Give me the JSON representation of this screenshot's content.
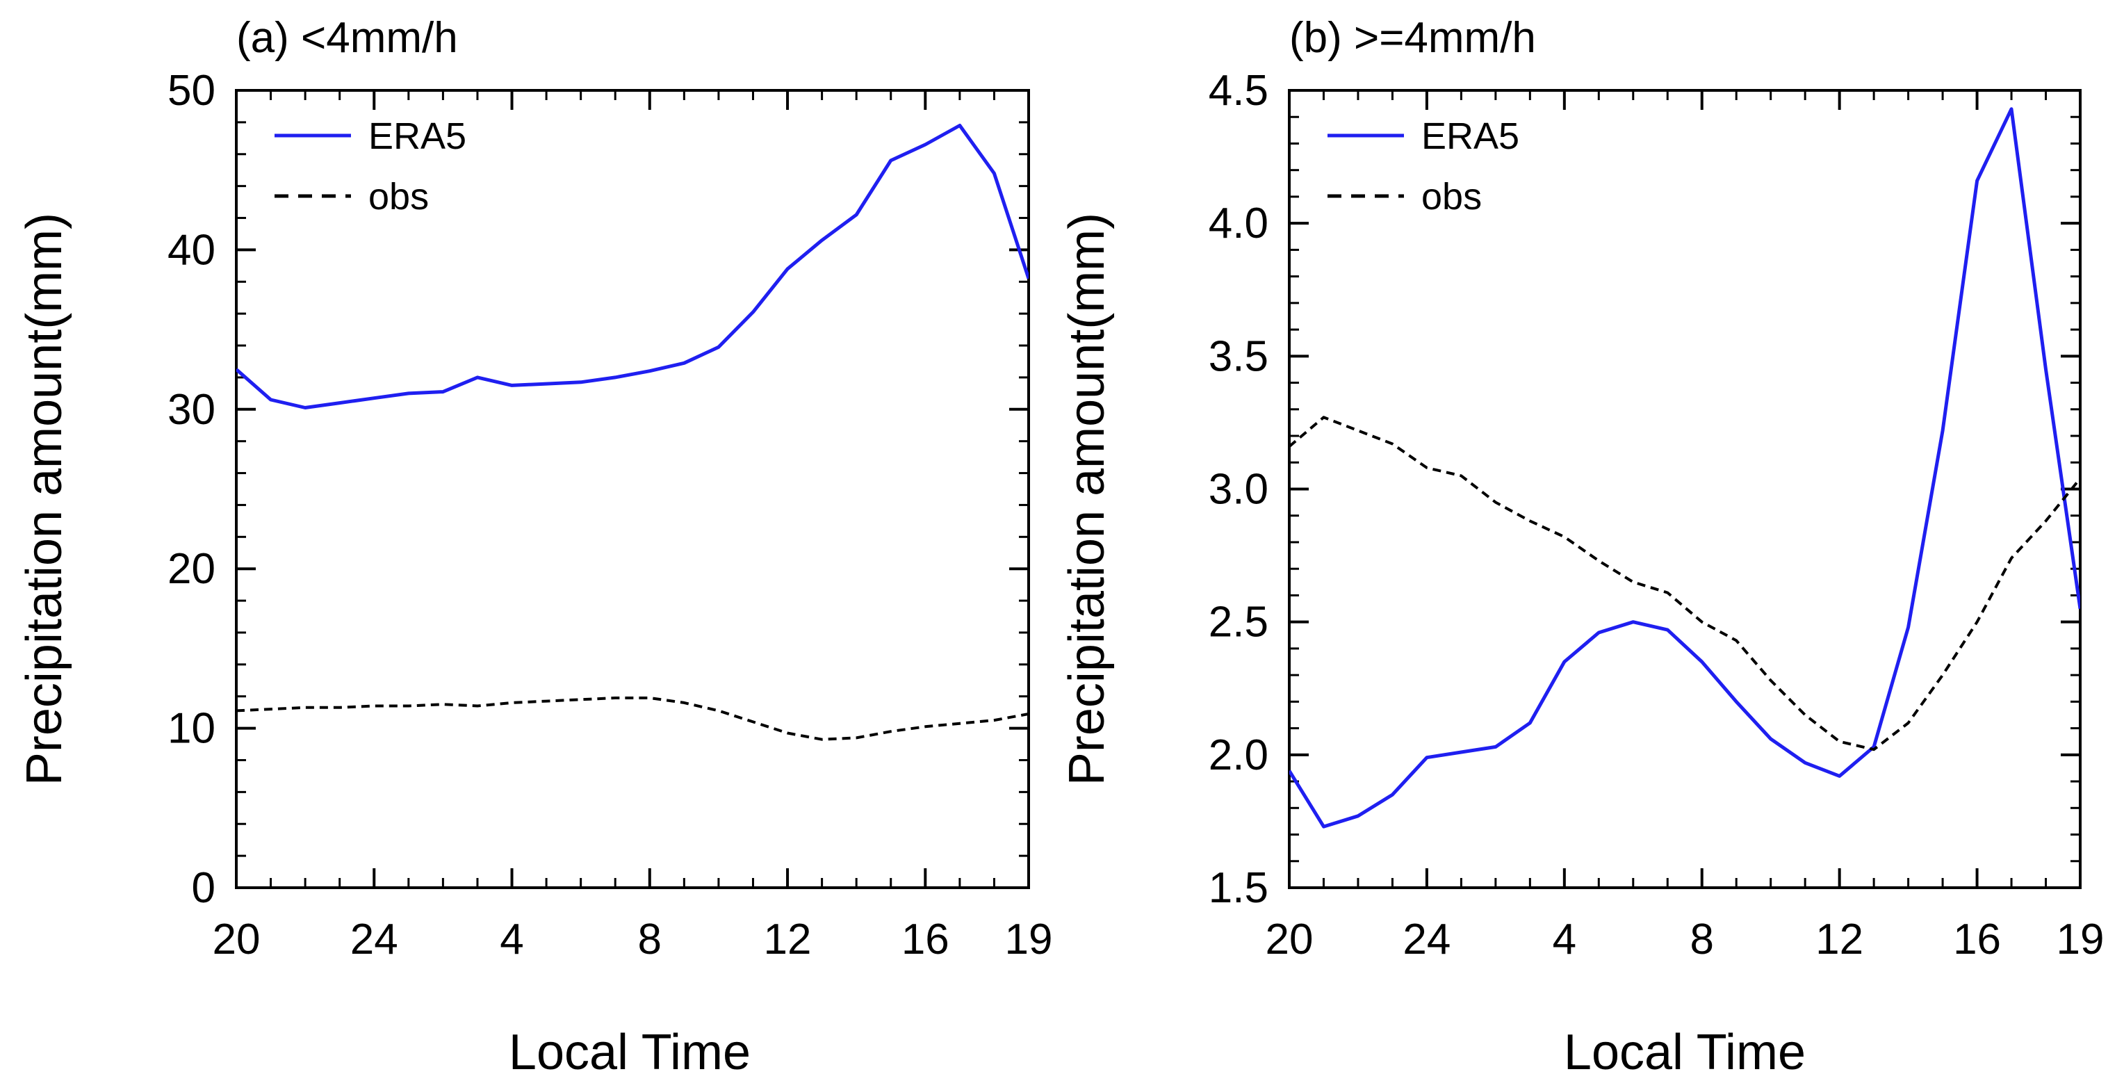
{
  "chart_data": [
    {
      "type": "line",
      "title": "(a) <4mm/h",
      "xlabel": "Local Time",
      "ylabel": "Precipitation amount(mm)",
      "x_tick_labels": [
        "20",
        "24",
        "4",
        "8",
        "12",
        "16",
        "19"
      ],
      "x_tick_hours": [
        0,
        4,
        8,
        12,
        16,
        20,
        23
      ],
      "xlim": [
        0,
        23
      ],
      "ylim": [
        0,
        50
      ],
      "yticks": [
        0,
        10,
        20,
        30,
        40,
        50
      ],
      "y_tick_labels": [
        "0",
        "10",
        "20",
        "30",
        "40",
        "50"
      ],
      "y_minor_step": 2,
      "legend": {
        "position": "top-left",
        "entries": [
          "ERA5",
          "obs"
        ]
      },
      "series": [
        {
          "name": "ERA5",
          "color": "#1f1ff0",
          "style": "solid",
          "values": [
            32.5,
            30.6,
            30.1,
            30.4,
            30.7,
            31.0,
            31.1,
            32.0,
            31.5,
            31.6,
            31.7,
            32.0,
            32.4,
            32.9,
            33.9,
            36.1,
            38.8,
            40.6,
            42.2,
            45.6,
            46.6,
            47.8,
            44.8,
            38.2
          ]
        },
        {
          "name": "obs",
          "color": "#000000",
          "style": "dashed",
          "values": [
            11.1,
            11.2,
            11.3,
            11.3,
            11.4,
            11.4,
            11.5,
            11.4,
            11.6,
            11.7,
            11.8,
            11.9,
            11.9,
            11.6,
            11.1,
            10.4,
            9.7,
            9.3,
            9.4,
            9.8,
            10.1,
            10.3,
            10.5,
            10.9
          ]
        }
      ]
    },
    {
      "type": "line",
      "title": "(b) >=4mm/h",
      "xlabel": "Local Time",
      "ylabel": "Precipitation amount(mm)",
      "x_tick_labels": [
        "20",
        "24",
        "4",
        "8",
        "12",
        "16",
        "19"
      ],
      "x_tick_hours": [
        0,
        4,
        8,
        12,
        16,
        20,
        23
      ],
      "xlim": [
        0,
        23
      ],
      "ylim": [
        1.5,
        4.5
      ],
      "yticks": [
        1.5,
        2.0,
        2.5,
        3.0,
        3.5,
        4.0,
        4.5
      ],
      "y_tick_labels": [
        "1.5",
        "2.0",
        "2.5",
        "3.0",
        "3.5",
        "4.0",
        "4.5"
      ],
      "y_minor_step": 0.1,
      "legend": {
        "position": "top-left",
        "entries": [
          "ERA5",
          "obs"
        ]
      },
      "series": [
        {
          "name": "ERA5",
          "color": "#1f1ff0",
          "style": "solid",
          "values": [
            1.94,
            1.73,
            1.77,
            1.85,
            1.99,
            2.01,
            2.03,
            2.12,
            2.35,
            2.46,
            2.5,
            2.47,
            2.35,
            2.2,
            2.06,
            1.97,
            1.92,
            2.03,
            2.48,
            3.22,
            4.16,
            4.43,
            3.45,
            2.55
          ]
        },
        {
          "name": "obs",
          "color": "#000000",
          "style": "dashed",
          "values": [
            3.16,
            3.27,
            3.22,
            3.17,
            3.08,
            3.05,
            2.95,
            2.88,
            2.82,
            2.73,
            2.65,
            2.61,
            2.5,
            2.43,
            2.28,
            2.15,
            2.05,
            2.02,
            2.12,
            2.3,
            2.5,
            2.74,
            2.88,
            3.04
          ]
        }
      ]
    }
  ]
}
